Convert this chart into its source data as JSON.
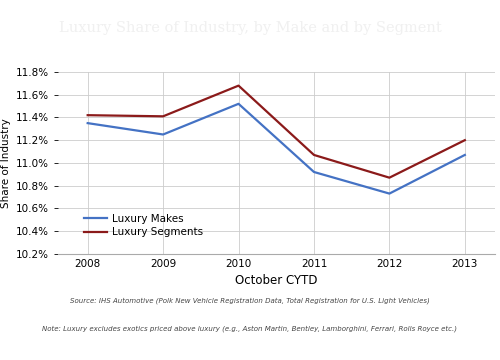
{
  "title": "Luxury Share of Industry, by Make and by Segment",
  "xlabel": "October CYTD",
  "ylabel": "Share of Industry",
  "years": [
    2008,
    2009,
    2010,
    2011,
    2012,
    2013
  ],
  "luxury_makes": [
    11.35,
    11.25,
    11.52,
    10.92,
    10.73,
    11.07
  ],
  "luxury_segments": [
    11.42,
    11.41,
    11.68,
    11.07,
    10.87,
    11.2
  ],
  "makes_color": "#4472C4",
  "segments_color": "#8B1A1A",
  "makes_label": "Luxury Makes",
  "segments_label": "Luxury Segments",
  "ylim": [
    10.2,
    11.8
  ],
  "yticks": [
    10.2,
    10.4,
    10.6,
    10.8,
    11.0,
    11.2,
    11.4,
    11.6,
    11.8
  ],
  "bg_title": "#6D6D6D",
  "bg_plot": "#FFFFFF",
  "title_color": "#F0F0F0",
  "source_text": "Source: IHS Automotive (Polk New Vehicle Registration Data, Total Registration for U.S. Light Vehicles)",
  "note_text": "Note: Luxury excludes exotics priced above luxury (e.g., Aston Martin, Bentley, Lamborghini, Ferrari, Rolls Royce etc.)"
}
